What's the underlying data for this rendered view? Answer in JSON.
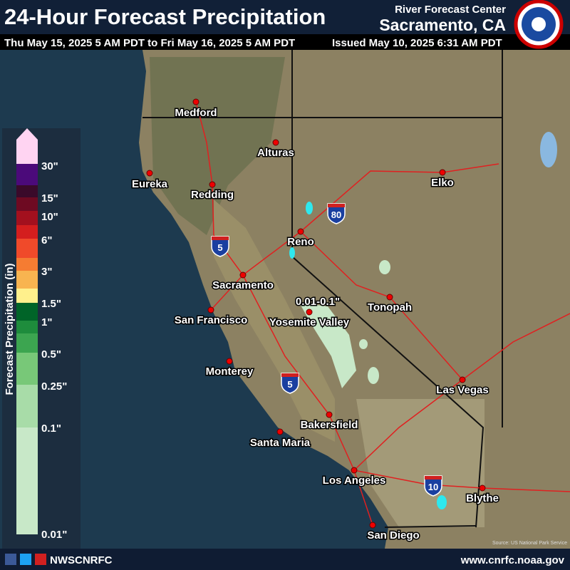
{
  "header": {
    "title": "24-Hour Forecast Precipitation",
    "valid_period": "Thu May 15, 2025 5 AM PDT to Fri May 16, 2025 5 AM PDT",
    "center_line1": "River Forecast Center",
    "center_line2": "Sacramento, CA",
    "issued": "Issued May 10, 2025 6:31 AM PDT"
  },
  "legend": {
    "title": "Forecast Precipitation (in)",
    "bands": [
      "#ffd4f2",
      "#4b0a7a",
      "#3a0a2a",
      "#6e0a22",
      "#a3101e",
      "#d41e1e",
      "#f04a2a",
      "#f57c32",
      "#f8b450",
      "#fff08c",
      "#006428",
      "#1e8c3c",
      "#3ca550",
      "#78c878",
      "#a8dca8",
      "#c8e8c8"
    ],
    "labels": [
      "30\"",
      "15\"",
      "10\"",
      "6\"",
      "3\"",
      "1.5\"",
      "1\"",
      "0.5\"",
      "0.25\"",
      "0.1\"",
      "0.01\""
    ]
  },
  "map": {
    "annotation": "0.01-0.1\"",
    "interstates": [
      "5",
      "80",
      "5",
      "10"
    ],
    "source": "Source: US National Park Service",
    "cities": [
      "Medford",
      "Alturas",
      "Eureka",
      "Redding",
      "Elko",
      "Reno",
      "Sacramento",
      "San Francisco",
      "Yosemite Valley",
      "Tonopah",
      "Monterey",
      "Las Vegas",
      "Bakersfield",
      "Santa Maria",
      "Los Angeles",
      "Blythe",
      "San Diego"
    ]
  },
  "footer": {
    "handle": "NWSCNRFC",
    "url": "www.cnrfc.noaa.gov"
  }
}
